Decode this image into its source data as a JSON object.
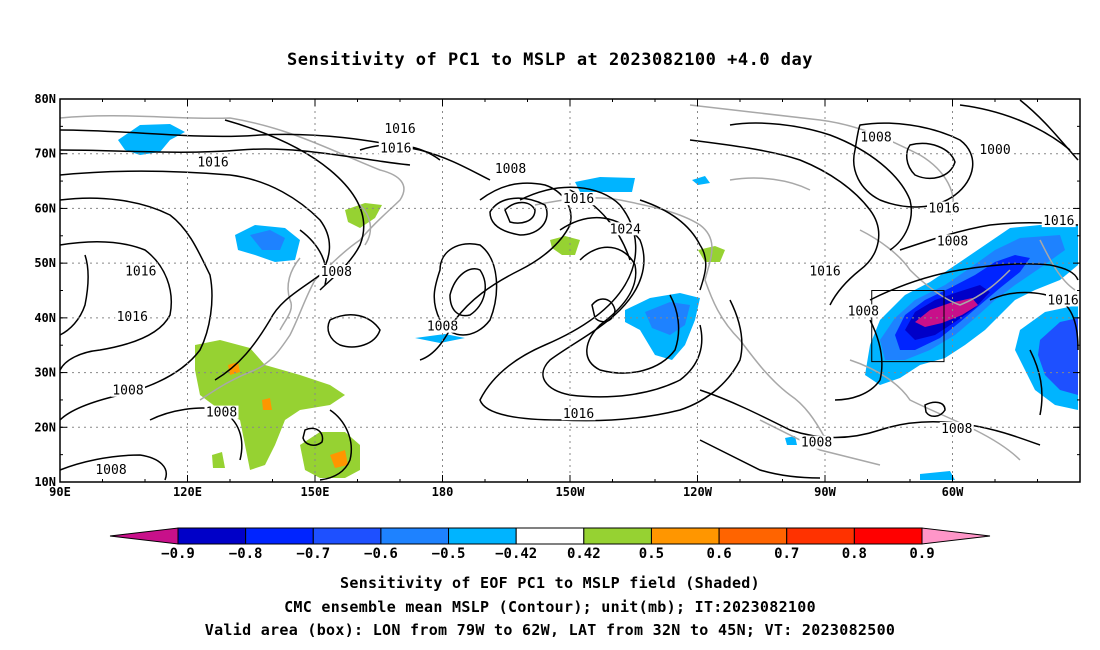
{
  "title": "Sensitivity of PC1 to MSLP at 2023082100 +4.0 day",
  "map": {
    "lon_ticks": [
      "90E",
      "120E",
      "150E",
      "180",
      "150W",
      "120W",
      "90W",
      "60W"
    ],
    "lat_ticks": [
      "80N",
      "70N",
      "60N",
      "50N",
      "40N",
      "30N",
      "20N",
      "10N"
    ],
    "lon_range": [
      90,
      330
    ],
    "lat_range": [
      10,
      80
    ],
    "valid_box": {
      "lon": [
        281,
        298
      ],
      "lat": [
        32,
        45
      ]
    },
    "contour_labels": [
      {
        "text": "1016",
        "lon": 170.0,
        "lat": 74.3
      },
      {
        "text": "1016",
        "lon": 169.0,
        "lat": 70.8
      },
      {
        "text": "1016",
        "lon": 126.0,
        "lat": 68.2
      },
      {
        "text": "1008",
        "lon": 196.0,
        "lat": 67.0
      },
      {
        "text": "1008",
        "lon": 282.0,
        "lat": 72.8
      },
      {
        "text": "1000",
        "lon": 310.0,
        "lat": 70.5
      },
      {
        "text": "1016",
        "lon": 212.0,
        "lat": 61.5
      },
      {
        "text": "1016",
        "lon": 298.0,
        "lat": 59.8
      },
      {
        "text": "1024",
        "lon": 223.0,
        "lat": 56.0
      },
      {
        "text": "1016",
        "lon": 325.0,
        "lat": 57.5
      },
      {
        "text": "1008",
        "lon": 300.0,
        "lat": 53.8
      },
      {
        "text": "1016",
        "lon": 109.0,
        "lat": 48.3
      },
      {
        "text": "1008",
        "lon": 155.0,
        "lat": 48.2
      },
      {
        "text": "1016",
        "lon": 270.0,
        "lat": 48.3
      },
      {
        "text": "1016",
        "lon": 107.0,
        "lat": 40.0
      },
      {
        "text": "1016",
        "lon": 326.0,
        "lat": 43.0
      },
      {
        "text": "1008",
        "lon": 279.0,
        "lat": 41.0
      },
      {
        "text": "1008",
        "lon": 180.0,
        "lat": 38.2
      },
      {
        "text": "1008",
        "lon": 106.0,
        "lat": 26.5
      },
      {
        "text": "1008",
        "lon": 128.0,
        "lat": 22.5
      },
      {
        "text": "1016",
        "lon": 212.0,
        "lat": 22.2
      },
      {
        "text": "1008",
        "lon": 268.0,
        "lat": 17.0
      },
      {
        "text": "1008",
        "lon": 301.0,
        "lat": 19.5
      },
      {
        "text": "1008",
        "lon": 102.0,
        "lat": 12.0
      }
    ]
  },
  "colorbar": {
    "colors": [
      "#c8108a",
      "#0000c8",
      "#0024ff",
      "#1e50ff",
      "#1e82ff",
      "#00b4ff",
      "#ffffff",
      "#96d232",
      "#ff9600",
      "#ff6400",
      "#ff3200",
      "#ff0000",
      "#ff96c8"
    ],
    "labels": [
      "−0.9",
      "−0.8",
      "−0.7",
      "−0.6",
      "−0.5",
      "−0.42",
      "0.42",
      "0.5",
      "0.6",
      "0.7",
      "0.8",
      "0.9"
    ]
  },
  "captions": {
    "line1": "Sensitivity of EOF PC1 to MSLP field (Shaded)",
    "line2": "CMC ensemble mean MSLP (Contour); unit(mb); IT:2023082100",
    "line3": "Valid area (box): LON from 79W to 62W, LAT from 32N to 45N; VT: 2023082500"
  }
}
